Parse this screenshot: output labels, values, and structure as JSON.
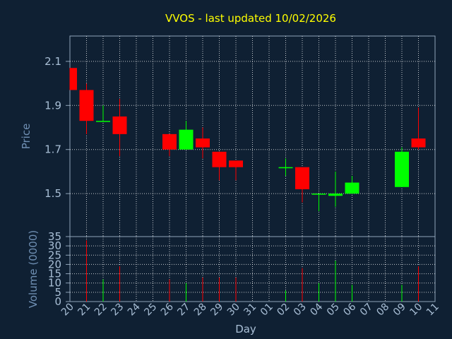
{
  "chart_data": {
    "type": "candlestick",
    "title": "VVOS - last updated 10/02/2026",
    "xlabel": "Day",
    "price_panel": {
      "ylabel": "Price",
      "ylim": [
        1.305,
        2.215
      ],
      "yticks": [
        "1.5",
        "1.7",
        "1.9",
        "2.1"
      ],
      "ytick_values": [
        1.5,
        1.7,
        1.9,
        2.1
      ]
    },
    "volume_panel": {
      "ylabel": "Volume (0000)",
      "ylim": [
        0,
        35
      ],
      "yticks": [
        "0",
        "5",
        "10",
        "15",
        "20",
        "25",
        "30",
        "35"
      ],
      "ytick_values": [
        0,
        5,
        10,
        15,
        20,
        25,
        30,
        35
      ]
    },
    "x_labels": [
      "20",
      "21",
      "22",
      "23",
      "24",
      "25",
      "26",
      "27",
      "28",
      "29",
      "30",
      "31",
      "01",
      "02",
      "03",
      "04",
      "05",
      "06",
      "07",
      "08",
      "09",
      "10",
      "11"
    ],
    "candles": [
      {
        "day": "20",
        "open": 2.07,
        "high": 2.07,
        "low": 1.97,
        "close": 1.97,
        "volume": 0
      },
      {
        "day": "21",
        "open": 1.97,
        "high": 2.0,
        "low": 1.77,
        "close": 1.83,
        "volume": 33
      },
      {
        "day": "22",
        "open": 1.83,
        "high": 1.9,
        "low": 1.83,
        "close": 1.83,
        "volume": 12
      },
      {
        "day": "23",
        "open": 1.85,
        "high": 1.93,
        "low": 1.67,
        "close": 1.77,
        "volume": 19
      },
      {
        "day": "26",
        "open": 1.77,
        "high": 1.77,
        "low": 1.67,
        "close": 1.7,
        "volume": 12
      },
      {
        "day": "27",
        "open": 1.7,
        "high": 1.83,
        "low": 1.7,
        "close": 1.79,
        "volume": 10
      },
      {
        "day": "28",
        "open": 1.75,
        "high": 1.8,
        "low": 1.66,
        "close": 1.71,
        "volume": 13
      },
      {
        "day": "29",
        "open": 1.69,
        "high": 1.69,
        "low": 1.56,
        "close": 1.62,
        "volume": 13
      },
      {
        "day": "30",
        "open": 1.65,
        "high": 1.65,
        "low": 1.56,
        "close": 1.62,
        "volume": 13
      },
      {
        "day": "02",
        "open": 1.62,
        "high": 1.66,
        "low": 1.58,
        "close": 1.62,
        "volume": 6
      },
      {
        "day": "03",
        "open": 1.62,
        "high": 1.62,
        "low": 1.46,
        "close": 1.52,
        "volume": 18
      },
      {
        "day": "04",
        "open": 1.5,
        "high": 1.5,
        "low": 1.42,
        "close": 1.5,
        "volume": 10
      },
      {
        "day": "05",
        "open": 1.49,
        "high": 1.6,
        "low": 1.44,
        "close": 1.5,
        "volume": 22
      },
      {
        "day": "06",
        "open": 1.5,
        "high": 1.58,
        "low": 1.5,
        "close": 1.55,
        "volume": 9
      },
      {
        "day": "09",
        "open": 1.53,
        "high": 1.71,
        "low": 1.53,
        "close": 1.69,
        "volume": 9
      },
      {
        "day": "10",
        "open": 1.75,
        "high": 1.89,
        "low": 1.7,
        "close": 1.71,
        "volume": 19
      }
    ],
    "colors": {
      "background": "#0f2033",
      "grid": "#ffffff",
      "up": "#00ff00",
      "down": "#ff0000",
      "title": "#ffff00",
      "axis_text": "#6f8fb3",
      "tick_text": "#a9bfd6",
      "border": "#8fa3b8"
    }
  }
}
